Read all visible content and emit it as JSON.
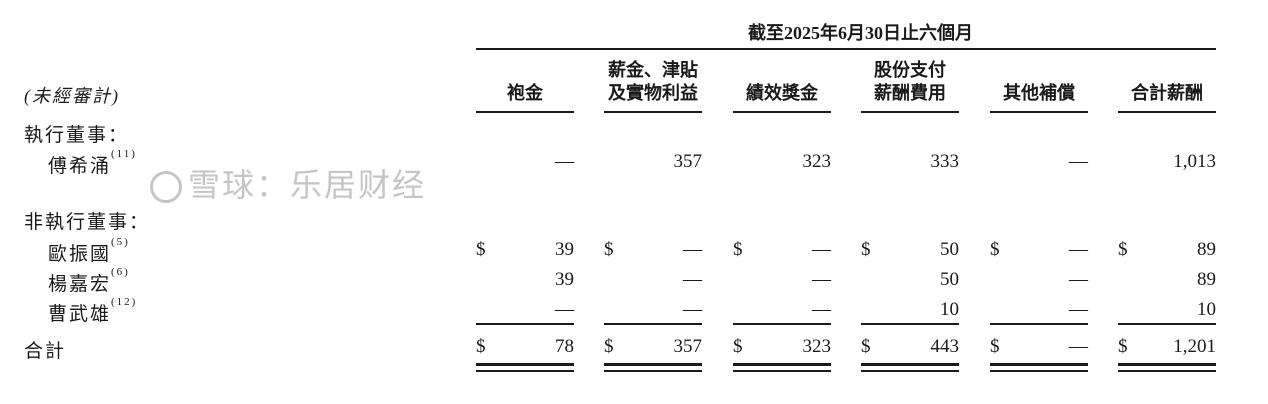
{
  "period_header": "截至2025年6月30日止六個月",
  "unaudited_label": "(未經審計)",
  "columns": [
    [
      "袍金"
    ],
    [
      "薪金、津貼",
      "及實物利益"
    ],
    [
      "績效獎金"
    ],
    [
      "股份支付",
      "薪酬費用"
    ],
    [
      "其他補償"
    ],
    [
      "合計薪酬"
    ]
  ],
  "sections": [
    {
      "title": "執行董事：",
      "rows": [
        {
          "name": "傅希涌",
          "note": "(11)",
          "dollar": false,
          "values": [
            "—",
            "357",
            "323",
            "333",
            "—",
            "1,013"
          ]
        }
      ]
    },
    {
      "title": "非執行董事：",
      "rows": [
        {
          "name": "歐振國",
          "note": "(5)",
          "dollar": true,
          "values": [
            "39",
            "—",
            "—",
            "50",
            "—",
            "89"
          ]
        },
        {
          "name": "楊嘉宏",
          "note": "(6)",
          "dollar": false,
          "values": [
            "39",
            "—",
            "—",
            "50",
            "—",
            "89"
          ]
        },
        {
          "name": "曹武雄",
          "note": "(12)",
          "dollar": false,
          "values": [
            "—",
            "—",
            "—",
            "10",
            "—",
            "10"
          ]
        }
      ]
    }
  ],
  "total": {
    "name": "合計",
    "currency": "$",
    "values": [
      "78",
      "357",
      "323",
      "443",
      "—",
      "1,201"
    ]
  },
  "currency_symbol": "$",
  "watermark": "雪球：乐居财经"
}
